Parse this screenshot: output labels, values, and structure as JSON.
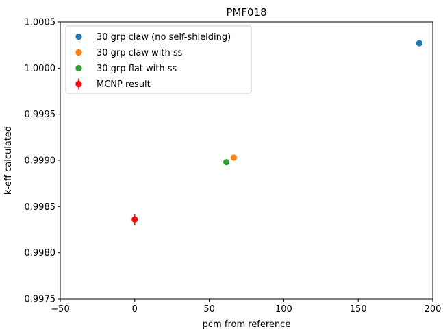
{
  "chart_data": {
    "type": "scatter",
    "title": "PMF018",
    "xlabel": "pcm from reference",
    "ylabel": "k-eff calculated",
    "xlim": [
      -50,
      200
    ],
    "ylim": [
      0.9975,
      1.0005
    ],
    "xticks": [
      -50,
      0,
      50,
      100,
      150,
      200
    ],
    "xtick_labels": [
      "−50",
      "0",
      "50",
      "100",
      "150",
      "200"
    ],
    "yticks": [
      0.9975,
      0.998,
      0.9985,
      0.999,
      0.9995,
      1.0,
      1.0005
    ],
    "ytick_labels": [
      "0.9975",
      "0.9980",
      "0.9985",
      "0.9990",
      "0.9995",
      "1.0000",
      "1.0005"
    ],
    "grid": false,
    "legend_position": "top-left",
    "series": [
      {
        "name": "30 grp claw (no self-shielding)",
        "color": "#1f77b4",
        "marker": "circle",
        "points": [
          {
            "x": 191,
            "y": 1.00027
          }
        ]
      },
      {
        "name": "30 grp claw with ss",
        "color": "#ff7f0e",
        "marker": "circle",
        "points": [
          {
            "x": 66.5,
            "y": 0.99903
          }
        ]
      },
      {
        "name": "30 grp flat with ss",
        "color": "#2ca02c",
        "marker": "circle",
        "points": [
          {
            "x": 61.5,
            "y": 0.99898
          }
        ]
      },
      {
        "name": "MCNP result",
        "color": "#ff0000",
        "marker": "circle-errorbar",
        "points": [
          {
            "x": 0,
            "y": 0.99836,
            "yerr": 6e-05
          }
        ]
      }
    ]
  }
}
